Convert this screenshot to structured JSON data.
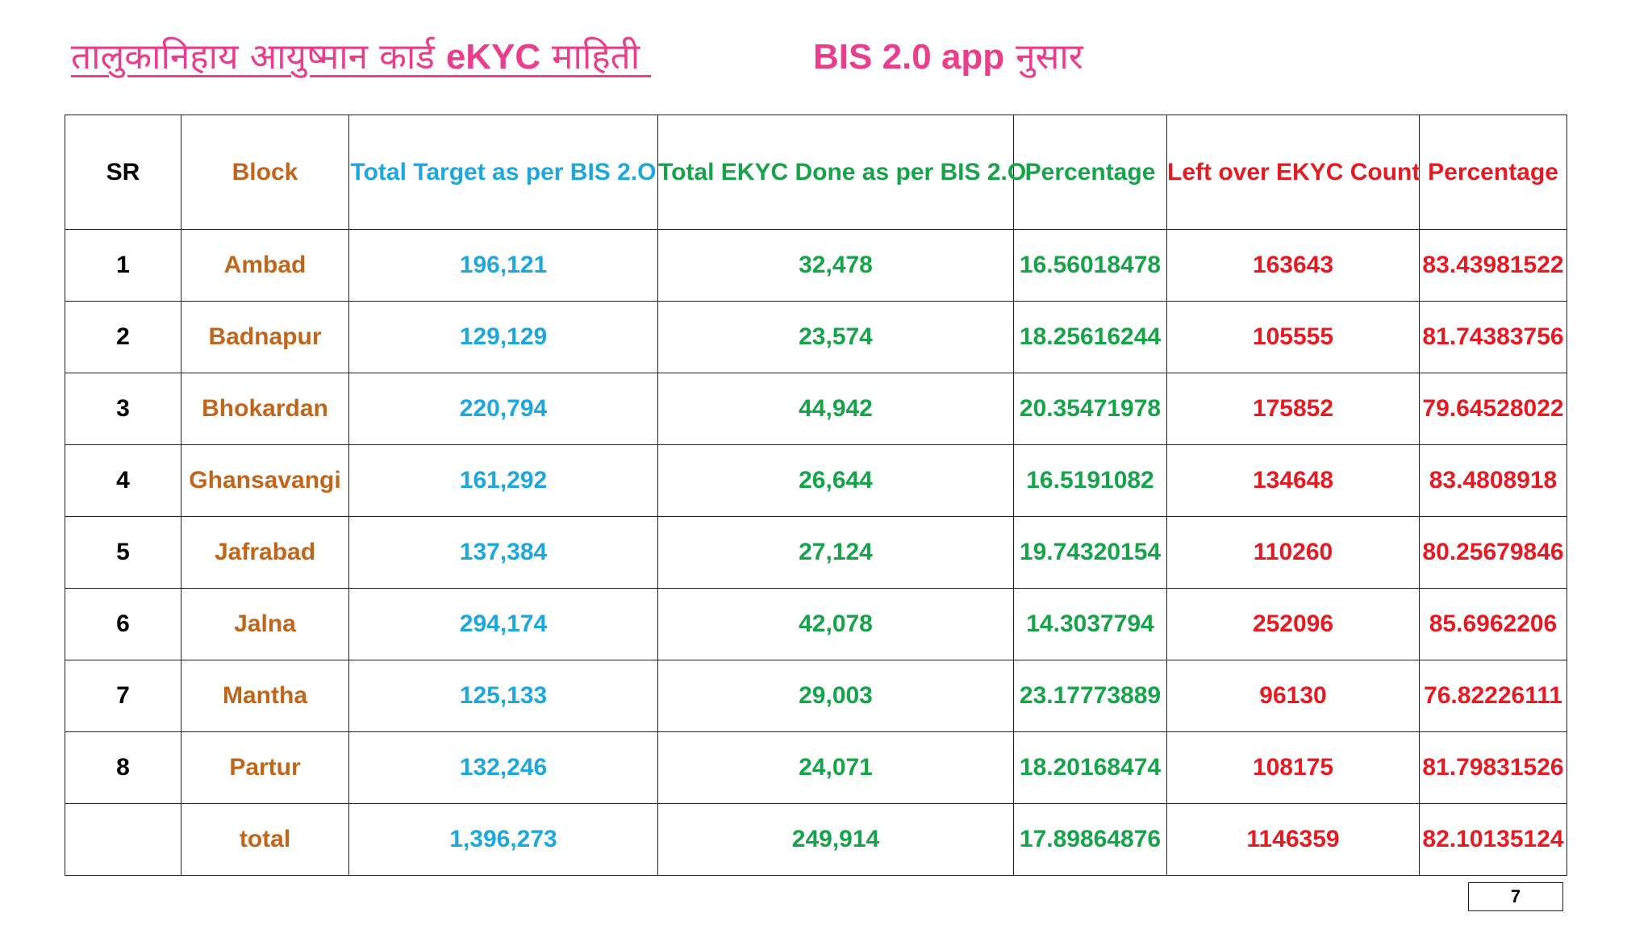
{
  "title": {
    "left_part1": "तालुकानिहाय आयुष्मान कार्ड ",
    "left_bold": "eKYC",
    "left_part2": " माहिती ",
    "right_bold": "BIS 2.0 app",
    "right_deva": " नुसार"
  },
  "table": {
    "headers": {
      "sr": "SR",
      "block": "Block",
      "target": "Total Target as per BIS 2.O",
      "done": "Total EKYC Done as per BIS 2.O",
      "pct1": "Percentage",
      "left": "Left over EKYC Count",
      "pct2": "Percentage"
    },
    "rows": [
      {
        "sr": "1",
        "block": "Ambad",
        "target": "196,121",
        "done": "32,478",
        "pct1": "16.56018478",
        "left": "163643",
        "pct2": "83.43981522"
      },
      {
        "sr": "2",
        "block": "Badnapur",
        "target": "129,129",
        "done": "23,574",
        "pct1": "18.25616244",
        "left": "105555",
        "pct2": "81.74383756"
      },
      {
        "sr": "3",
        "block": "Bhokardan",
        "target": "220,794",
        "done": "44,942",
        "pct1": "20.35471978",
        "left": "175852",
        "pct2": "79.64528022"
      },
      {
        "sr": "4",
        "block": "Ghansavangi",
        "target": "161,292",
        "done": "26,644",
        "pct1": "16.5191082",
        "left": "134648",
        "pct2": "83.4808918"
      },
      {
        "sr": "5",
        "block": "Jafrabad",
        "target": "137,384",
        "done": "27,124",
        "pct1": "19.74320154",
        "left": "110260",
        "pct2": "80.25679846"
      },
      {
        "sr": "6",
        "block": "Jalna",
        "target": "294,174",
        "done": "42,078",
        "pct1": "14.3037794",
        "left": "252096",
        "pct2": "85.6962206"
      },
      {
        "sr": "7",
        "block": "Mantha",
        "target": "125,133",
        "done": "29,003",
        "pct1": "23.17773889",
        "left": "96130",
        "pct2": "76.82226111"
      },
      {
        "sr": "8",
        "block": "Partur",
        "target": "132,246",
        "done": "24,071",
        "pct1": "18.20168474",
        "left": "108175",
        "pct2": "81.79831526"
      }
    ],
    "total": {
      "sr": "",
      "block": "total",
      "target": "1,396,273",
      "done": "249,914",
      "pct1": "17.89864876",
      "left": "1146359",
      "pct2": "82.10135124"
    }
  },
  "page_number": "7",
  "colors": {
    "title": "#e83e8c",
    "sr": "#000000",
    "block": "#c0651a",
    "target": "#1ea7dc",
    "done": "#17a34a",
    "left": "#e31b23"
  }
}
